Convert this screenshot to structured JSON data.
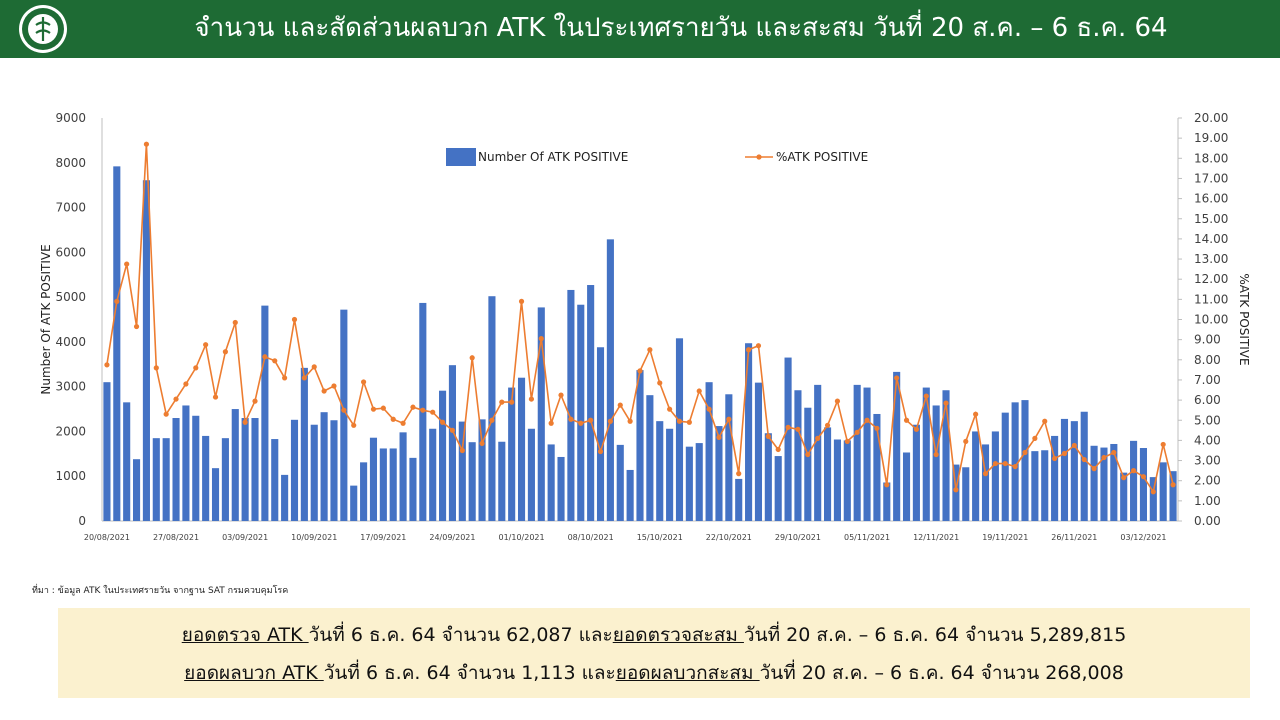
{
  "header": {
    "title": "จำนวน และสัดส่วนผลบวก ATK ในประเทศรายวัน และสะสม วันที่ 20 ส.ค. – 6 ธ.ค. 64"
  },
  "colors": {
    "header_bg": "#1e6b34",
    "bar": "#4472c4",
    "line": "#ed7d31",
    "summary_bg": "#fbf1cf"
  },
  "chart_data": {
    "type": "bar+line",
    "xlabel": "",
    "ylabel": "Number Of ATK POSITIVE",
    "y2label": "%ATK POSITIVE",
    "ylim": [
      0,
      9000
    ],
    "y2lim": [
      0,
      20
    ],
    "yticks": [
      "0",
      "1000",
      "2000",
      "3000",
      "4000",
      "5000",
      "6000",
      "7000",
      "8000",
      "9000"
    ],
    "y2ticks": [
      "0.00",
      "1.00",
      "2.00",
      "3.00",
      "4.00",
      "5.00",
      "6.00",
      "7.00",
      "8.00",
      "9.00",
      "10.00",
      "11.00",
      "12.00",
      "13.00",
      "14.00",
      "15.00",
      "16.00",
      "17.00",
      "18.00",
      "19.00",
      "20.00"
    ],
    "xticks": [
      {
        "index": 0,
        "label": "20/08/2021"
      },
      {
        "index": 7,
        "label": "27/08/2021"
      },
      {
        "index": 14,
        "label": "03/09/2021"
      },
      {
        "index": 21,
        "label": "10/09/2021"
      },
      {
        "index": 28,
        "label": "17/09/2021"
      },
      {
        "index": 35,
        "label": "24/09/2021"
      },
      {
        "index": 42,
        "label": "01/10/2021"
      },
      {
        "index": 49,
        "label": "08/10/2021"
      },
      {
        "index": 56,
        "label": "15/10/2021"
      },
      {
        "index": 63,
        "label": "22/10/2021"
      },
      {
        "index": 70,
        "label": "29/10/2021"
      },
      {
        "index": 77,
        "label": "05/11/2021"
      },
      {
        "index": 84,
        "label": "12/11/2021"
      },
      {
        "index": 91,
        "label": "19/11/2021"
      },
      {
        "index": 98,
        "label": "26/11/2021"
      },
      {
        "index": 105,
        "label": "03/12/2021"
      }
    ],
    "legend": {
      "position": "top",
      "bar_label": "Number Of ATK POSITIVE",
      "line_label": "%ATK POSITIVE"
    },
    "series": [
      {
        "name": "Number Of ATK POSITIVE",
        "type": "bar",
        "values": [
          3100,
          7920,
          2650,
          1380,
          7610,
          1850,
          1850,
          2300,
          2580,
          2350,
          1900,
          1180,
          1850,
          2500,
          2300,
          2300,
          4810,
          1830,
          1030,
          2260,
          3420,
          2150,
          2430,
          2250,
          4720,
          790,
          1310,
          1860,
          1620,
          1620,
          1980,
          1410,
          4870,
          2060,
          2910,
          3480,
          2220,
          1760,
          2270,
          5020,
          1770,
          2980,
          3200,
          2060,
          4770,
          1710,
          1430,
          5160,
          4830,
          5270,
          3880,
          6290,
          1700,
          1140,
          3370,
          2810,
          2230,
          2060,
          4080,
          1660,
          1740,
          3100,
          2120,
          2830,
          940,
          3970,
          3090,
          1960,
          1450,
          3650,
          2920,
          2530,
          3040,
          2090,
          1820,
          1800,
          3040,
          2980,
          2390,
          860,
          3330,
          1530,
          2150,
          2980,
          2580,
          2920,
          1260,
          1200,
          2000,
          1710,
          2000,
          2420,
          2650,
          2700,
          1560,
          1580,
          1900,
          2280,
          2230,
          2440,
          1680,
          1640,
          1720,
          1080,
          1790,
          1630,
          980,
          1310,
          1113
        ]
      },
      {
        "name": "%ATK POSITIVE",
        "type": "line",
        "values": [
          7.75,
          10.9,
          12.75,
          9.65,
          18.7,
          7.6,
          5.3,
          6.05,
          6.8,
          7.6,
          8.75,
          6.15,
          8.4,
          9.85,
          4.9,
          5.95,
          8.15,
          7.95,
          7.1,
          10.0,
          7.1,
          7.65,
          6.45,
          6.7,
          5.5,
          4.75,
          6.9,
          5.55,
          5.6,
          5.05,
          4.85,
          5.65,
          5.5,
          5.4,
          4.9,
          4.5,
          3.5,
          8.1,
          3.85,
          5.0,
          5.9,
          5.9,
          10.9,
          6.05,
          9.05,
          4.85,
          6.25,
          5.05,
          4.85,
          5.0,
          3.45,
          4.95,
          5.75,
          4.95,
          7.45,
          8.5,
          6.85,
          5.55,
          4.95,
          4.9,
          6.45,
          5.55,
          4.15,
          5.05,
          2.35,
          8.5,
          8.7,
          4.2,
          3.55,
          4.65,
          4.55,
          3.3,
          4.1,
          4.75,
          5.95,
          3.95,
          4.4,
          5.0,
          4.6,
          1.8,
          7.1,
          5.0,
          4.55,
          6.2,
          3.3,
          5.85,
          1.55,
          3.95,
          5.3,
          2.35,
          2.85,
          2.85,
          2.7,
          3.4,
          4.1,
          4.95,
          3.1,
          3.35,
          3.75,
          3.05,
          2.6,
          3.15,
          3.4,
          2.15,
          2.5,
          2.2,
          1.45,
          3.8,
          1.8
        ]
      }
    ]
  },
  "source": "ที่มา : ข้อมูล ATK ในประเทศรายวัน จากฐาน SAT กรมควบคุมโรค",
  "summary": {
    "line1": {
      "part1": "ยอดตรวจ ATK ",
      "part2": "วันที่ 6 ธ.ค. 64 จำนวน 62,087 และ",
      "part3": "ยอดตรวจสะสม ",
      "part4": "วันที่ 20 ส.ค. – 6 ธ.ค. 64 จำนวน 5,289,815"
    },
    "line2": {
      "part1": "ยอดผลบวก ATK ",
      "part2": "วันที่ 6 ธ.ค. 64 จำนวน 1,113 และ",
      "part3": "ยอดผลบวกสะสม ",
      "part4": "วันที่ 20 ส.ค. – 6 ธ.ค. 64 จำนวน 268,008"
    }
  }
}
